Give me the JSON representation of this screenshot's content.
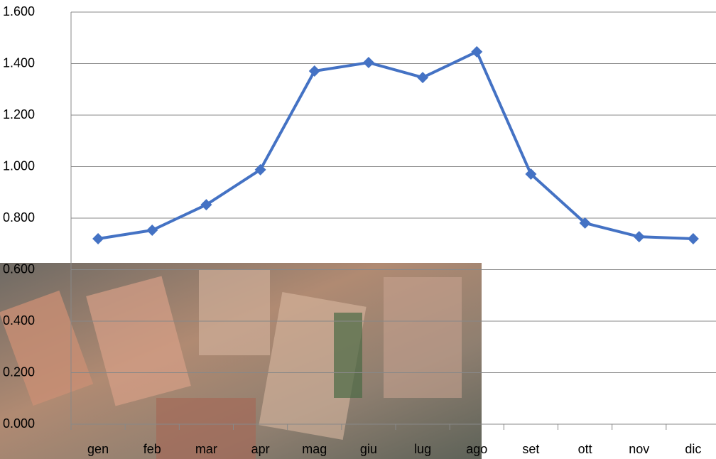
{
  "chart_data": {
    "type": "line",
    "categories": [
      "gen",
      "feb",
      "mar",
      "apr",
      "mag",
      "giu",
      "lug",
      "ago",
      "set",
      "ott",
      "nov",
      "dic"
    ],
    "series": [
      {
        "color": "#4472c4",
        "values": [
          0.72,
          0.753,
          0.852,
          0.988,
          1.371,
          1.404,
          1.346,
          1.446,
          0.971,
          0.781,
          0.728,
          0.72
        ]
      }
    ],
    "ylim": [
      0,
      1.6
    ],
    "yticks": [
      {
        "value": 0,
        "label": "0.000"
      },
      {
        "value": 0.2,
        "label": "0.200"
      },
      {
        "value": 0.4,
        "label": "0.400"
      },
      {
        "value": 0.6,
        "label": "0.600"
      },
      {
        "value": 0.8,
        "label": "0.800"
      },
      {
        "value": 1.0,
        "label": "1.000"
      },
      {
        "value": 1.2,
        "label": "1.200"
      },
      {
        "value": 1.4,
        "label": "1.400"
      },
      {
        "value": 1.6,
        "label": "1.600"
      }
    ],
    "grid": true
  }
}
